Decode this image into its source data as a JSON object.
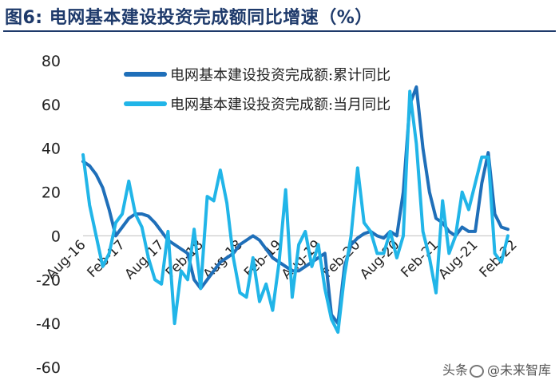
{
  "title": "图6:  电网基本建设投资完成额同比增速（%）",
  "watermark": {
    "text_left": "头条",
    "text_right": "@未来智库"
  },
  "colors": {
    "title": "#1e3a6b",
    "series_cumulative": "#1f6fb9",
    "series_monthly": "#21b5e8"
  },
  "chart_data": {
    "type": "line",
    "ylim": [
      -60,
      80
    ],
    "yticks": [
      -60,
      -40,
      -20,
      0,
      20,
      40,
      60,
      80
    ],
    "xlabels": [
      "Aug-16",
      "Feb-17",
      "Aug-17",
      "Feb-18",
      "Aug-18",
      "Feb-19",
      "Aug-19",
      "Feb-20",
      "Aug-20",
      "Feb-21",
      "Aug-21",
      "Feb-22"
    ],
    "x_start": "Aug-16",
    "x_end": "Jun-22",
    "legend_position": "top-center",
    "grid": false,
    "series": [
      {
        "name": "电网基本建设投资完成额:累计同比",
        "values": [
          34,
          32,
          28,
          22,
          12,
          0,
          4,
          8,
          10,
          10,
          9,
          6,
          2,
          -2,
          -4,
          -6,
          -8,
          -20,
          -24,
          -20,
          -16,
          -12,
          -10,
          -8,
          -4,
          -2,
          0,
          -2,
          -6,
          -10,
          -12,
          -14,
          -16,
          -16,
          -14,
          -12,
          -10,
          -8,
          -36,
          -40,
          -14,
          -4,
          -1,
          1,
          2,
          0,
          -1,
          2,
          0,
          20,
          60,
          68,
          40,
          20,
          8,
          6,
          2,
          0,
          4,
          2,
          2,
          24,
          38,
          10,
          4,
          3
        ]
      },
      {
        "name": "电网基本建设投资完成额:当月同比",
        "values": [
          37,
          14,
          0,
          -14,
          -8,
          6,
          10,
          25,
          10,
          4,
          -10,
          -20,
          -22,
          2,
          -40,
          -16,
          -20,
          3,
          -24,
          18,
          16,
          30,
          15,
          -10,
          -26,
          -28,
          -10,
          -30,
          -22,
          -34,
          -12,
          21,
          -28,
          -4,
          2,
          -14,
          -4,
          -24,
          -38,
          -44,
          -18,
          0,
          31,
          6,
          2,
          -8,
          -8,
          2,
          -10,
          0,
          66,
          42,
          2,
          -10,
          -26,
          16,
          -8,
          0,
          20,
          12,
          24,
          36,
          36,
          -8,
          -12,
          0
        ]
      }
    ]
  }
}
